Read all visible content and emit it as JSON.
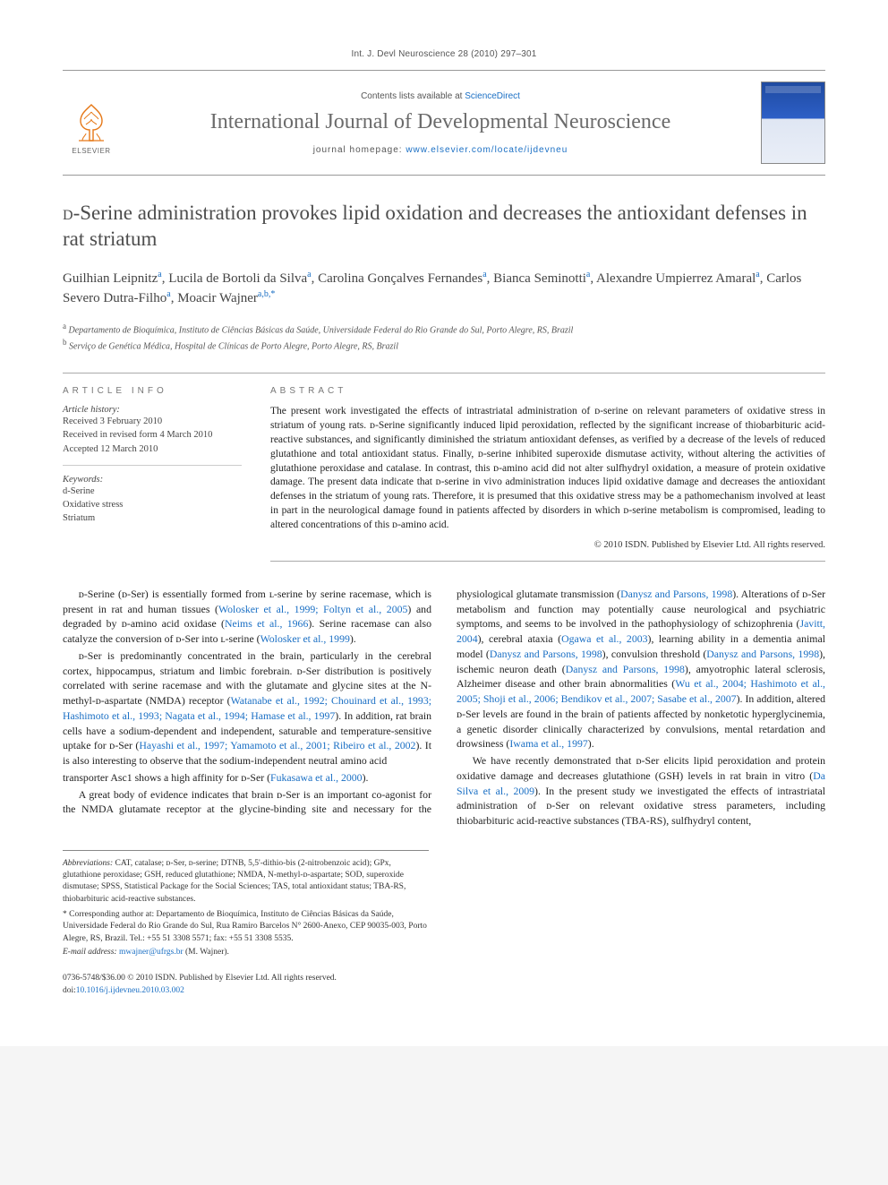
{
  "running_head": "Int. J. Devl Neuroscience 28 (2010) 297–301",
  "masthead": {
    "contents_prefix": "Contents lists available at ",
    "contents_link": "ScienceDirect",
    "journal": "International Journal of Developmental Neuroscience",
    "homepage_prefix": "journal homepage: ",
    "homepage_url": "www.elsevier.com/locate/ijdevneu",
    "publisher_logo_label": "ELSEVIER"
  },
  "article": {
    "title_pre": "",
    "title_sc": "d",
    "title_post": "-Serine administration provokes lipid oxidation and decreases the antioxidant defenses in rat striatum",
    "authors_html": "Guilhian Leipnitz<sup>a</sup>, Lucila de Bortoli da Silva<sup>a</sup>, Carolina Gonçalves Fernandes<sup>a</sup>, Bianca Seminotti<sup>a</sup>, Alexandre Umpierrez Amaral<sup>a</sup>, Carlos Severo Dutra-Filho<sup>a</sup>, Moacir Wajner<sup>a,b,*</sup>",
    "affiliations": [
      {
        "sup": "a",
        "text": "Departamento de Bioquímica, Instituto de Ciências Básicas da Saúde, Universidade Federal do Rio Grande do Sul, Porto Alegre, RS, Brazil"
      },
      {
        "sup": "b",
        "text": "Serviço de Genética Médica, Hospital de Clínicas de Porto Alegre, Porto Alegre, RS, Brazil"
      }
    ]
  },
  "info": {
    "heading": "article info",
    "history_label": "Article history:",
    "received": "Received 3 February 2010",
    "revised": "Received in revised form 4 March 2010",
    "accepted": "Accepted 12 March 2010",
    "keywords_label": "Keywords:",
    "keywords": [
      "d-Serine",
      "Oxidative stress",
      "Striatum"
    ]
  },
  "abstract": {
    "heading": "abstract",
    "text": "The present work investigated the effects of intrastriatal administration of ᴅ-serine on relevant parameters of oxidative stress in striatum of young rats. ᴅ-Serine significantly induced lipid peroxidation, reflected by the significant increase of thiobarbituric acid-reactive substances, and significantly diminished the striatum antioxidant defenses, as verified by a decrease of the levels of reduced glutathione and total antioxidant status. Finally, ᴅ-serine inhibited superoxide dismutase activity, without altering the activities of glutathione peroxidase and catalase. In contrast, this ᴅ-amino acid did not alter sulfhydryl oxidation, a measure of protein oxidative damage. The present data indicate that ᴅ-serine in vivo administration induces lipid oxidative damage and decreases the antioxidant defenses in the striatum of young rats. Therefore, it is presumed that this oxidative stress may be a pathomechanism involved at least in part in the neurological damage found in patients affected by disorders in which ᴅ-serine metabolism is compromised, leading to altered concentrations of this ᴅ-amino acid.",
    "copyright": "© 2010 ISDN. Published by Elsevier Ltd. All rights reserved."
  },
  "body": {
    "p1": "ᴅ-Serine (ᴅ-Ser) is essentially formed from ʟ-serine by serine racemase, which is present in rat and human tissues (Wolosker et al., 1999; Foltyn et al., 2005) and degraded by ᴅ-amino acid oxidase (Neims et al., 1966). Serine racemase can also catalyze the conversion of ᴅ-Ser into ʟ-serine (Wolosker et al., 1999).",
    "p2": "ᴅ-Ser is predominantly concentrated in the brain, particularly in the cerebral cortex, hippocampus, striatum and limbic forebrain. ᴅ-Ser distribution is positively correlated with serine racemase and with the glutamate and glycine sites at the N-methyl-ᴅ-aspartate (NMDA) receptor (Watanabe et al., 1992; Chouinard et al., 1993; Hashimoto et al., 1993; Nagata et al., 1994; Hamase et al., 1997). In addition, rat brain cells have a sodium-dependent and independent, saturable and temperature-sensitive uptake for ᴅ-Ser (Hayashi et al., 1997; Yamamoto et al., 2001; Ribeiro et al., 2002). It is also interesting to observe that the sodium-independent neutral amino acid",
    "p3": "transporter Asc1 shows a high affinity for ᴅ-Ser (Fukasawa et al., 2000).",
    "p4": "A great body of evidence indicates that brain ᴅ-Ser is an important co-agonist for the NMDA glutamate receptor at the glycine-binding site and necessary for the physiological glutamate transmission (Danysz and Parsons, 1998). Alterations of ᴅ-Ser metabolism and function may potentially cause neurological and psychiatric symptoms, and seems to be involved in the pathophysiology of schizophrenia (Javitt, 2004), cerebral ataxia (Ogawa et al., 2003), learning ability in a dementia animal model (Danysz and Parsons, 1998), convulsion threshold (Danysz and Parsons, 1998), ischemic neuron death (Danysz and Parsons, 1998), amyotrophic lateral sclerosis, Alzheimer disease and other brain abnormalities (Wu et al., 2004; Hashimoto et al., 2005; Shoji et al., 2006; Bendikov et al., 2007; Sasabe et al., 2007). In addition, altered ᴅ-Ser levels are found in the brain of patients affected by nonketotic hyperglycinemia, a genetic disorder clinically characterized by convulsions, mental retardation and drowsiness (Iwama et al., 1997).",
    "p5": "We have recently demonstrated that ᴅ-Ser elicits lipid peroxidation and protein oxidative damage and decreases glutathione (GSH) levels in rat brain in vitro (Da Silva et al., 2009). In the present study we investigated the effects of intrastriatal administration of ᴅ-Ser on relevant oxidative stress parameters, including thiobarbituric acid-reactive substances (TBA-RS), sulfhydryl content,"
  },
  "footnotes": {
    "abbrev_label": "Abbreviations:",
    "abbrev_text": " CAT, catalase; ᴅ-Ser, ᴅ-serine; DTNB, 5,5'-dithio-bis (2-nitrobenzoic acid); GPx, glutathione peroxidase; GSH, reduced glutathione; NMDA, N-methyl-ᴅ-aspartate; SOD, superoxide dismutase; SPSS, Statistical Package for the Social Sciences; TAS, total antioxidant status; TBA-RS, thiobarbituric acid-reactive substances.",
    "corr_label": "* Corresponding author at: ",
    "corr_text": "Departamento de Bioquímica, Instituto de Ciências Básicas da Saúde, Universidade Federal do Rio Grande do Sul, Rua Ramiro Barcelos N° 2600-Anexo, CEP 90035-003, Porto Alegre, RS, Brazil. Tel.: +55 51 3308 5571; fax: +55 51 3308 5535.",
    "email_label": "E-mail address: ",
    "email": "mwajner@ufrgs.br",
    "email_suffix": " (M. Wajner)."
  },
  "footer": {
    "issn_line": "0736-5748/$36.00 © 2010 ISDN. Published by Elsevier Ltd. All rights reserved.",
    "doi_prefix": "doi:",
    "doi": "10.1016/j.ijdevneu.2010.03.002"
  },
  "colors": {
    "link": "#1a6fc4",
    "rule": "#999999",
    "text": "#222222",
    "muted": "#555555"
  }
}
